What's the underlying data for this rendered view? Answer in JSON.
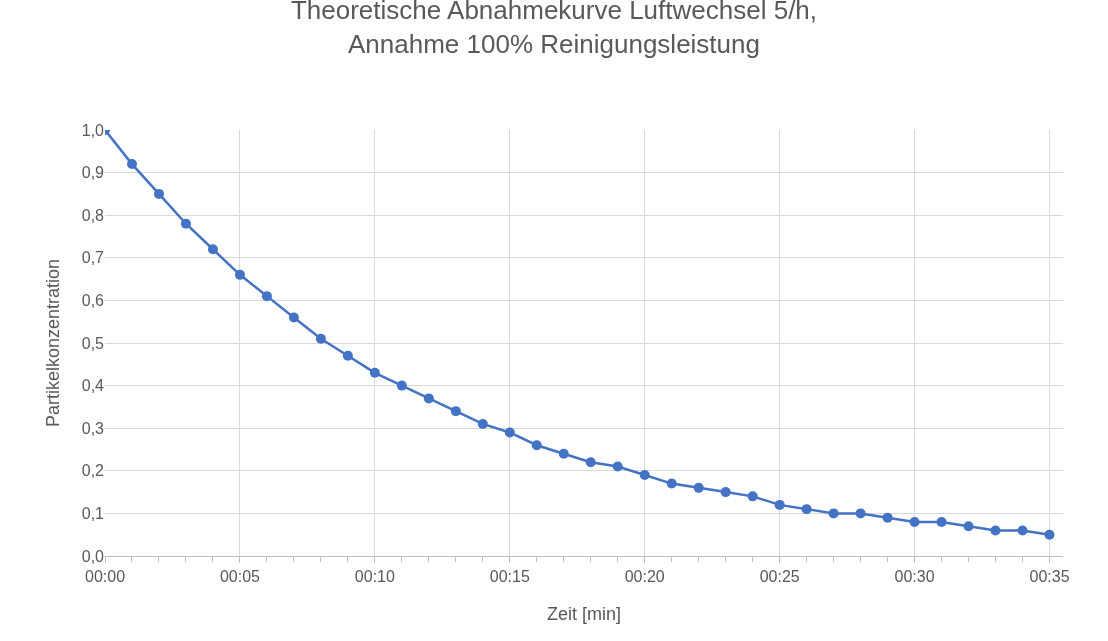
{
  "chart_data": {
    "type": "line",
    "title": "Theoretische Abnahmekurve Luftwechsel 5/h,\nAnnahme 100% Reinigungsleistung",
    "xlabel": "Zeit [min]",
    "ylabel": "Partikelkonzentration",
    "x": [
      0,
      1,
      2,
      3,
      4,
      5,
      6,
      7,
      8,
      9,
      10,
      11,
      12,
      13,
      14,
      15,
      16,
      17,
      18,
      19,
      20,
      21,
      22,
      23,
      24,
      25,
      26,
      27,
      28,
      29,
      30,
      31,
      32,
      33,
      34,
      35
    ],
    "series": [
      {
        "color": "#4472c4",
        "values": [
          1.0,
          0.92,
          0.85,
          0.78,
          0.72,
          0.66,
          0.61,
          0.56,
          0.51,
          0.47,
          0.43,
          0.4,
          0.37,
          0.34,
          0.31,
          0.29,
          0.26,
          0.24,
          0.22,
          0.21,
          0.19,
          0.17,
          0.16,
          0.15,
          0.14,
          0.12,
          0.11,
          0.1,
          0.1,
          0.09,
          0.08,
          0.08,
          0.07,
          0.06,
          0.06,
          0.05
        ]
      }
    ],
    "xlim": [
      0,
      35.5
    ],
    "xticks": [
      {
        "value": 0,
        "label": "00:00"
      },
      {
        "value": 5,
        "label": "00:05"
      },
      {
        "value": 10,
        "label": "00:10"
      },
      {
        "value": 15,
        "label": "00:15"
      },
      {
        "value": 20,
        "label": "00:20"
      },
      {
        "value": 25,
        "label": "00:25"
      },
      {
        "value": 30,
        "label": "00:30"
      },
      {
        "value": 35,
        "label": "00:35"
      }
    ],
    "ylim": [
      0,
      1
    ],
    "yticks": [
      {
        "value": 0,
        "label": "0,0"
      },
      {
        "value": 0.1,
        "label": "0,1"
      },
      {
        "value": 0.2,
        "label": "0,2"
      },
      {
        "value": 0.3,
        "label": "0,3"
      },
      {
        "value": 0.4,
        "label": "0,4"
      },
      {
        "value": 0.5,
        "label": "0,5"
      },
      {
        "value": 0.6,
        "label": "0,6"
      },
      {
        "value": 0.7,
        "label": "0,7"
      },
      {
        "value": 0.8,
        "label": "0,8"
      },
      {
        "value": 0.9,
        "label": "0,9"
      },
      {
        "value": 1,
        "label": "1,0"
      }
    ],
    "grid": true,
    "marker": "circle",
    "line_style": "solid"
  }
}
